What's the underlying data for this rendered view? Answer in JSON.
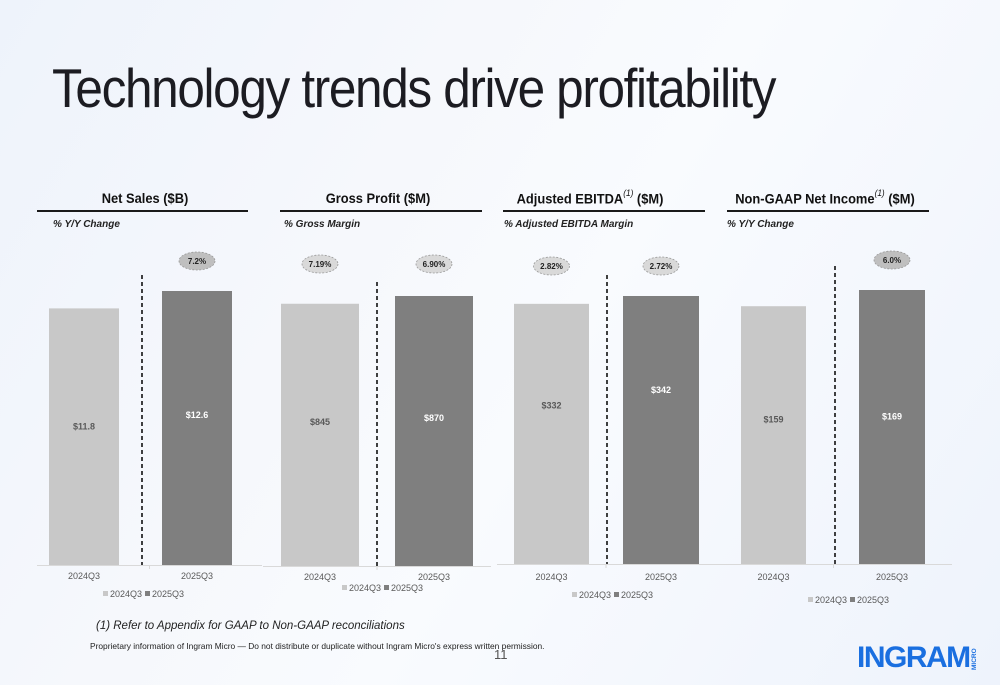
{
  "slide": {
    "title": "Technology trends drive profitability",
    "footnote": "(1) Refer to Appendix for GAAP to Non-GAAP reconciliations",
    "legal": "Proprietary information of Ingram Micro — Do not distribute or duplicate without Ingram Micro's express written permission.",
    "page_number": "11",
    "logo": {
      "text": "INGRAM",
      "sub": "MICRO",
      "color": "#1a6fe0"
    }
  },
  "colors": {
    "bar_2024": "#c8c8c8",
    "bar_2025": "#7f7f7f",
    "bubble_light": "#d9d9d9",
    "bubble_dark": "#bfbfbf",
    "label_light_text": "#595959",
    "label_dark_text": "#ffffff"
  },
  "panels": [
    {
      "title": "Net Sales ($B)",
      "footnote_marker": "",
      "subtitle": "% Y/Y Change"
    },
    {
      "title": "Gross Profit ($M)",
      "footnote_marker": "",
      "subtitle": "% Gross Margin"
    },
    {
      "title": "Adjusted EBITDA",
      "title_suffix": "($M)",
      "footnote_marker": "(1)",
      "subtitle": "% Adjusted EBITDA Margin"
    },
    {
      "title": "Non-GAAP Net Income",
      "title_suffix": "($M)",
      "footnote_marker": "(1)",
      "subtitle": "% Y/Y Change"
    }
  ],
  "chart_data": [
    {
      "type": "bar",
      "title": "Net Sales ($B)",
      "subtitle": "% Y/Y Change",
      "categories": [
        "2024Q3",
        "2025Q3"
      ],
      "values": [
        11.8,
        12.6
      ],
      "data_labels": [
        "$11.8",
        "$12.6"
      ],
      "annotations": [
        null,
        "7.2%"
      ],
      "legend": [
        "2024Q3",
        "2025Q3"
      ],
      "legend_position": "bottom",
      "grid": false
    },
    {
      "type": "bar",
      "title": "Gross Profit ($M)",
      "subtitle": "% Gross Margin",
      "categories": [
        "2024Q3",
        "2025Q3"
      ],
      "values": [
        845,
        870
      ],
      "data_labels": [
        "$845",
        "$870"
      ],
      "annotations": [
        "7.19%",
        "6.90%"
      ],
      "legend": [
        "2024Q3",
        "2025Q3"
      ],
      "legend_position": "bottom",
      "grid": false
    },
    {
      "type": "bar",
      "title": "Adjusted EBITDA(1) ($M)",
      "subtitle": "% Adjusted EBITDA Margin",
      "categories": [
        "2024Q3",
        "2025Q3"
      ],
      "values": [
        332,
        342
      ],
      "data_labels": [
        "$332",
        "$342"
      ],
      "annotations": [
        "2.82%",
        "2.72%"
      ],
      "legend": [
        "2024Q3",
        "2025Q3"
      ],
      "legend_position": "bottom",
      "grid": false
    },
    {
      "type": "bar",
      "title": "Non-GAAP Net Income(1) ($M)",
      "subtitle": "% Y/Y Change",
      "categories": [
        "2024Q3",
        "2025Q3"
      ],
      "values": [
        159,
        169
      ],
      "data_labels": [
        "$159",
        "$169"
      ],
      "annotations": [
        null,
        "6.0%"
      ],
      "legend": [
        "2024Q3",
        "2025Q3"
      ],
      "legend_position": "bottom",
      "grid": false
    }
  ]
}
